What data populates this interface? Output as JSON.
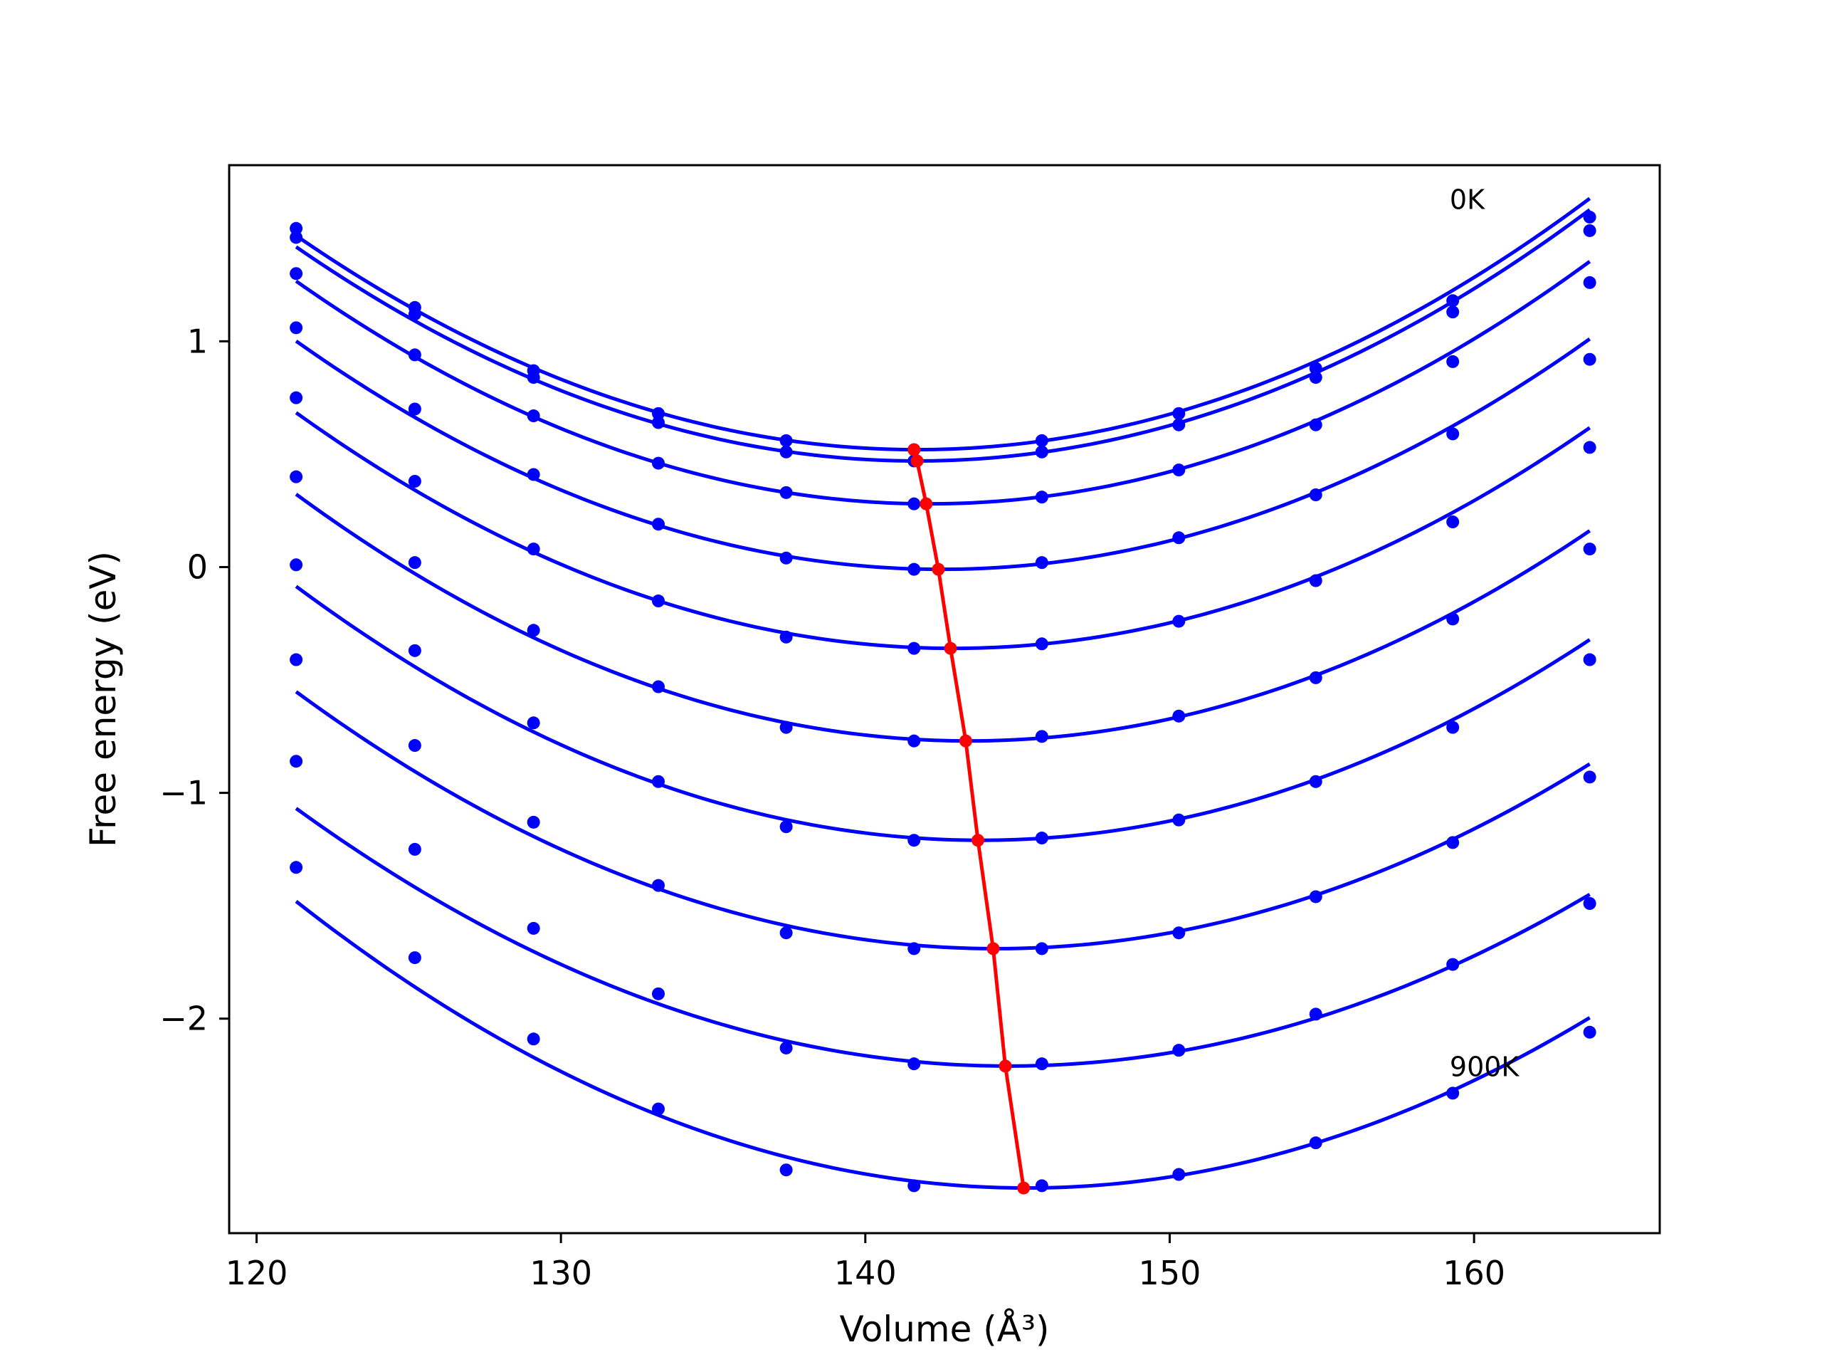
{
  "chart_data": {
    "type": "line",
    "title": "",
    "xlabel": "Volume (Å³)",
    "ylabel": "Free energy (eV)",
    "xlim": [
      119.1,
      166.1
    ],
    "ylim": [
      -2.95,
      1.78
    ],
    "xticks": [
      120,
      130,
      140,
      150,
      160
    ],
    "yticks": [
      -2,
      -1,
      0,
      1
    ],
    "xtick_labels": [
      "120",
      "130",
      "140",
      "150",
      "160"
    ],
    "ytick_labels": [
      "−2",
      "−1",
      "0",
      "1"
    ],
    "grid": false,
    "legend": "none",
    "colors": {
      "curves": "#0000ff",
      "minima": "#ff0000",
      "axes": "#000000"
    },
    "annotations": [
      {
        "text": "0K",
        "x": 159.2,
        "y": 1.63
      },
      {
        "text": "900K",
        "x": 159.2,
        "y": -2.21
      }
    ],
    "x": [
      121.3,
      125.2,
      129.1,
      133.2,
      137.4,
      141.6,
      145.8,
      150.3,
      154.8,
      159.3,
      163.8
    ],
    "series": [
      {
        "values": [
          1.5,
          1.15,
          0.87,
          0.68,
          0.56,
          0.52,
          0.56,
          0.68,
          0.88,
          1.18,
          1.55
        ],
        "fit": {
          "a": 0.002278,
          "vmin": 141.7,
          "fmin": 0.52
        }
      },
      {
        "values": [
          1.46,
          1.12,
          0.84,
          0.64,
          0.51,
          0.47,
          0.51,
          0.63,
          0.84,
          1.13,
          1.49
        ],
        "fit": {
          "a": 0.002278,
          "vmin": 141.7,
          "fmin": 0.47
        }
      },
      {
        "values": [
          1.3,
          0.94,
          0.67,
          0.46,
          0.33,
          0.28,
          0.31,
          0.43,
          0.63,
          0.91,
          1.26
        ],
        "fit": {
          "a": 0.00228,
          "vmin": 142.1,
          "fmin": 0.28
        }
      },
      {
        "values": [
          1.06,
          0.7,
          0.41,
          0.19,
          0.04,
          -0.01,
          0.02,
          0.13,
          0.32,
          0.59,
          0.92
        ],
        "fit": {
          "a": 0.002249,
          "vmin": 142.5,
          "fmin": -0.01
        }
      },
      {
        "values": [
          0.75,
          0.38,
          0.08,
          -0.15,
          -0.31,
          -0.36,
          -0.34,
          -0.24,
          -0.06,
          0.2,
          0.53
        ],
        "fit": {
          "a": 0.002237,
          "vmin": 142.9,
          "fmin": -0.36
        }
      },
      {
        "values": [
          0.4,
          0.02,
          -0.28,
          -0.53,
          -0.71,
          -0.77,
          -0.75,
          -0.66,
          -0.49,
          -0.23,
          0.08
        ],
        "fit": {
          "a": 0.002237,
          "vmin": 143.4,
          "fmin": -0.77
        }
      },
      {
        "values": [
          0.01,
          -0.37,
          -0.69,
          -0.95,
          -1.15,
          -1.21,
          -1.2,
          -1.12,
          -0.95,
          -0.71,
          -0.41
        ],
        "fit": {
          "a": 0.002221,
          "vmin": 143.8,
          "fmin": -1.21
        }
      },
      {
        "values": [
          -0.41,
          -0.79,
          -1.13,
          -1.41,
          -1.62,
          -1.69,
          -1.69,
          -1.62,
          -1.46,
          -1.22,
          -0.93
        ],
        "fit": {
          "a": 0.002151,
          "vmin": 144.3,
          "fmin": -1.69
        }
      },
      {
        "values": [
          -0.86,
          -1.25,
          -1.6,
          -1.89,
          -2.13,
          -2.2,
          -2.2,
          -2.14,
          -1.98,
          -1.76,
          -1.49
        ],
        "fit": {
          "a": 0.002084,
          "vmin": 144.7,
          "fmin": -2.21
        }
      },
      {
        "values": [
          -1.33,
          -1.73,
          -2.09,
          -2.4,
          -2.67,
          -2.74,
          -2.74,
          -2.69,
          -2.55,
          -2.33,
          -2.06
        ],
        "fit": {
          "a": 0.002204,
          "vmin": 145.3,
          "fmin": -2.75
        }
      }
    ],
    "minima": {
      "x": [
        141.6,
        141.7,
        142.0,
        142.4,
        142.8,
        143.3,
        143.7,
        144.2,
        144.6,
        145.2
      ],
      "y": [
        0.52,
        0.47,
        0.28,
        -0.01,
        -0.36,
        -0.77,
        -1.21,
        -1.69,
        -2.21,
        -2.75
      ]
    }
  }
}
